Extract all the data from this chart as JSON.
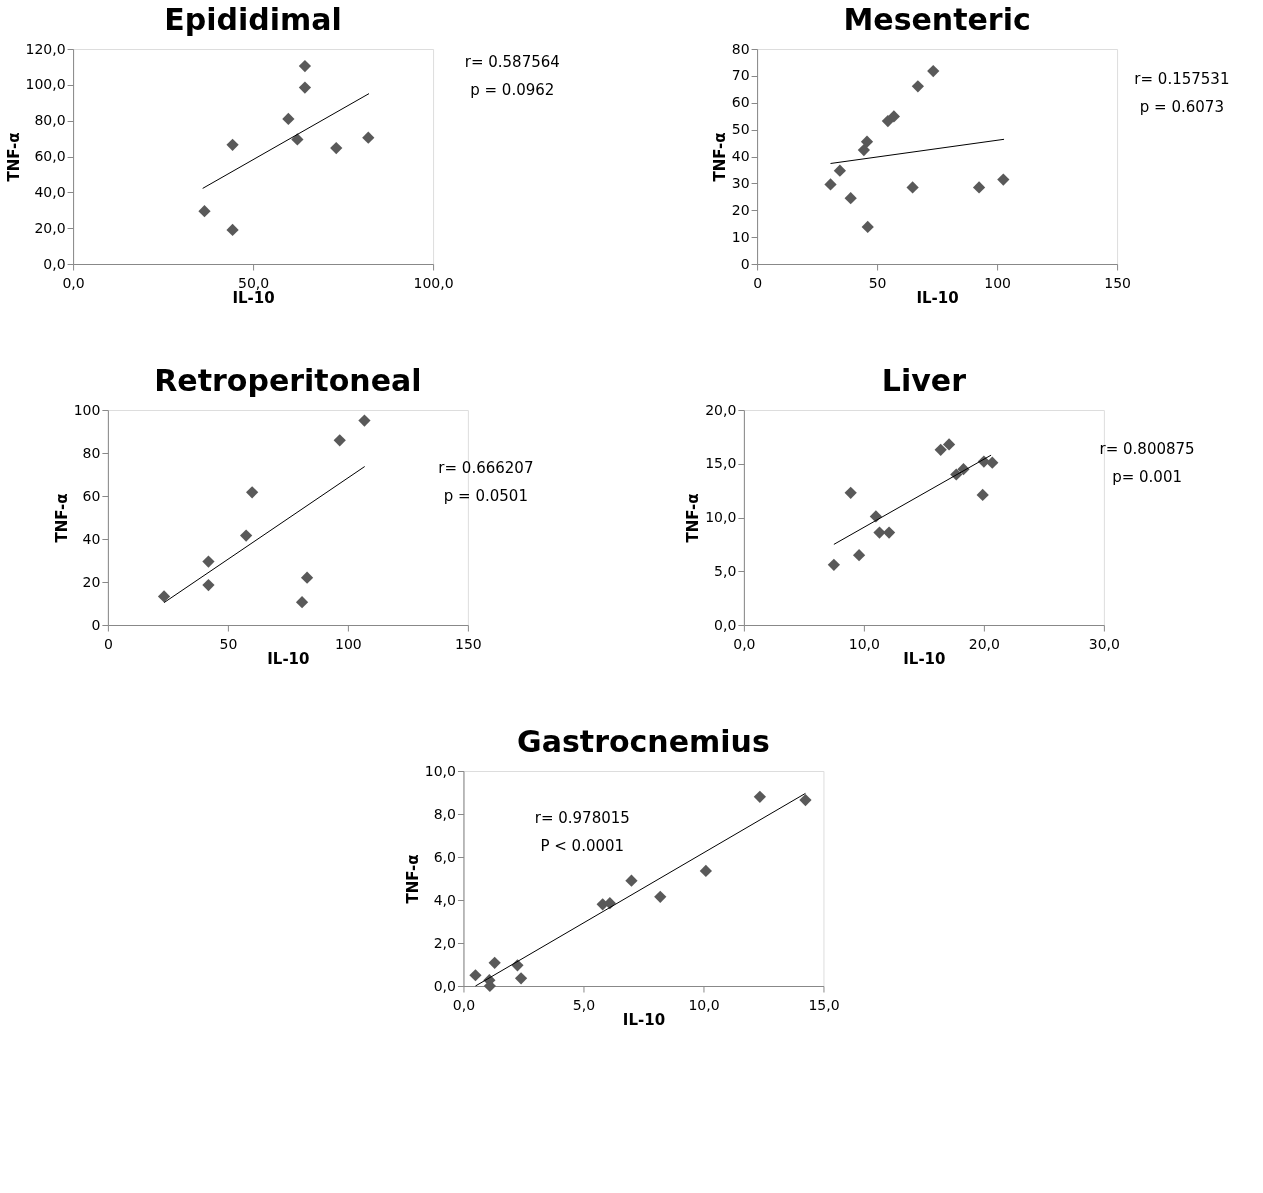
{
  "chart_data": [
    {
      "type": "scatter",
      "title": "Epididimal",
      "xlabel": "IL-10",
      "ylabel": "TNF-α",
      "grid": false,
      "xlim": [
        0,
        100
      ],
      "xticks": [
        {
          "value": 0,
          "label": "0,0"
        },
        {
          "value": 50,
          "label": "50,0"
        },
        {
          "value": 100,
          "label": "100,0"
        }
      ],
      "ylim": [
        0,
        120
      ],
      "yticks": [
        {
          "value": 0,
          "label": "0,0"
        },
        {
          "value": 20,
          "label": "20,0"
        },
        {
          "value": 40,
          "label": "40,0"
        },
        {
          "value": 60,
          "label": "60,0"
        },
        {
          "value": 80,
          "label": "80,0"
        },
        {
          "value": 100,
          "label": "100,0"
        },
        {
          "value": 120,
          "label": "120,0"
        }
      ],
      "series": [
        {
          "type": "scatter",
          "marker": "diamond",
          "color": "#595959",
          "x": [
            36.5,
            44.3,
            44.3,
            59.8,
            62.3,
            64.4,
            64.4,
            73.1,
            82.0
          ],
          "values": [
            29.5,
            19.0,
            66.5,
            81.0,
            69.5,
            98.5,
            110.5,
            64.7,
            70.5
          ]
        },
        {
          "type": "line",
          "marker": "none",
          "color": "#000000",
          "x": [
            36.0,
            82.2
          ],
          "values": [
            42.2,
            95.1
          ]
        }
      ],
      "annotations": [
        "r= 0.587564",
        "p = 0.0962"
      ]
    },
    {
      "type": "scatter",
      "title": "Mesenteric",
      "xlabel": "IL-10",
      "ylabel": "TNF-α",
      "grid": false,
      "xlim": [
        0,
        150
      ],
      "xticks": [
        0,
        50,
        100,
        150
      ],
      "ylim": [
        0,
        80
      ],
      "yticks": [
        0,
        10,
        20,
        30,
        40,
        50,
        60,
        70,
        80
      ],
      "series": [
        {
          "type": "scatter",
          "marker": "diamond",
          "color": "#595959",
          "x": [
            30.6,
            34.5,
            39.0,
            46.1,
            44.5,
            45.8,
            54.5,
            57.0,
            64.8,
            67.0,
            73.4,
            92.5,
            102.6
          ],
          "values": [
            29.6,
            34.7,
            24.5,
            13.8,
            42.4,
            45.5,
            53.2,
            54.9,
            28.5,
            66.1,
            71.8,
            28.5,
            31.4
          ]
        },
        {
          "type": "line",
          "marker": "none",
          "color": "#000000",
          "x": [
            30.6,
            102.9
          ],
          "values": [
            37.4,
            46.4
          ]
        }
      ],
      "annotations": [
        "r= 0.157531",
        "p = 0.6073"
      ]
    },
    {
      "type": "scatter",
      "title": "Retroperitoneal",
      "xlabel": "IL-10",
      "ylabel": "TNF-α",
      "grid": false,
      "xlim": [
        0,
        150
      ],
      "xticks": [
        0,
        50,
        100,
        150
      ],
      "ylim": [
        0,
        100
      ],
      "yticks": [
        0,
        20,
        40,
        60,
        80,
        100
      ],
      "series": [
        {
          "type": "scatter",
          "marker": "diamond",
          "color": "#595959",
          "x": [
            23.4,
            41.9,
            41.9,
            57.6,
            60.1,
            80.9,
            83.0,
            96.6,
            106.9
          ],
          "values": [
            13.3,
            29.5,
            18.6,
            41.6,
            61.7,
            10.6,
            22.0,
            85.9,
            95.1
          ]
        },
        {
          "type": "line",
          "marker": "none",
          "color": "#000000",
          "x": [
            23.4,
            107.0
          ],
          "values": [
            10.4,
            73.7
          ]
        }
      ],
      "annotations": [
        "r= 0.666207",
        "p = 0.0501"
      ]
    },
    {
      "type": "scatter",
      "title": "Liver",
      "xlabel": "IL-10",
      "ylabel": "TNF-α",
      "grid": false,
      "xlim": [
        0,
        30
      ],
      "xticks": [
        {
          "value": 0,
          "label": "0,0"
        },
        {
          "value": 10,
          "label": "10,0"
        },
        {
          "value": 20,
          "label": "20,0"
        },
        {
          "value": 30,
          "label": "30,0"
        }
      ],
      "ylim": [
        0,
        20
      ],
      "yticks": [
        {
          "value": 0,
          "label": "0,0"
        },
        {
          "value": 5,
          "label": "5,0"
        },
        {
          "value": 10,
          "label": "10,0"
        },
        {
          "value": 15,
          "label": "15,0"
        },
        {
          "value": 20,
          "label": "20,0"
        }
      ],
      "series": [
        {
          "type": "scatter",
          "marker": "diamond",
          "color": "#595959",
          "x": [
            7.5,
            8.9,
            9.6,
            11.0,
            11.3,
            12.1,
            16.4,
            17.1,
            17.7,
            18.3,
            20.0,
            20.7,
            19.9
          ],
          "values": [
            5.6,
            12.3,
            6.5,
            10.1,
            8.6,
            8.6,
            16.3,
            16.8,
            14.0,
            14.5,
            15.2,
            15.1,
            12.1
          ]
        },
        {
          "type": "line",
          "marker": "none",
          "color": "#000000",
          "x": [
            7.5,
            20.6
          ],
          "values": [
            7.5,
            15.8
          ]
        }
      ],
      "annotations": [
        "r= 0.800875",
        "p= 0.001"
      ]
    },
    {
      "type": "scatter",
      "title": "Gastrocnemius",
      "xlabel": "IL-10",
      "ylabel": "TNF-α",
      "grid": false,
      "xlim": [
        0,
        15
      ],
      "xticks": [
        {
          "value": 0,
          "label": "0,0"
        },
        {
          "value": 5,
          "label": "5,0"
        },
        {
          "value": 10,
          "label": "10,0"
        },
        {
          "value": 15,
          "label": "15,0"
        }
      ],
      "ylim": [
        0,
        10
      ],
      "yticks": [
        {
          "value": 0,
          "label": "0,0"
        },
        {
          "value": 2,
          "label": "2,0"
        },
        {
          "value": 4,
          "label": "4,0"
        },
        {
          "value": 6,
          "label": "6,0"
        },
        {
          "value": 8,
          "label": "8,0"
        },
        {
          "value": 10,
          "label": "10,0"
        }
      ],
      "series": [
        {
          "type": "scatter",
          "marker": "diamond",
          "color": "#595959",
          "x": [
            0.5,
            1.08,
            1.1,
            1.3,
            2.25,
            2.4,
            5.8,
            6.1,
            7.0,
            8.2,
            10.1,
            12.35,
            14.25
          ],
          "values": [
            0.5,
            0.27,
            0.0,
            1.08,
            0.96,
            0.36,
            3.8,
            3.85,
            4.9,
            4.15,
            5.35,
            8.8,
            8.65
          ]
        },
        {
          "type": "line",
          "marker": "none",
          "color": "#000000",
          "x": [
            0.5,
            14.25
          ],
          "values": [
            0.0,
            8.96
          ]
        }
      ],
      "annotations": [
        "r= 0.978015",
        "P < 0.0001"
      ]
    }
  ]
}
